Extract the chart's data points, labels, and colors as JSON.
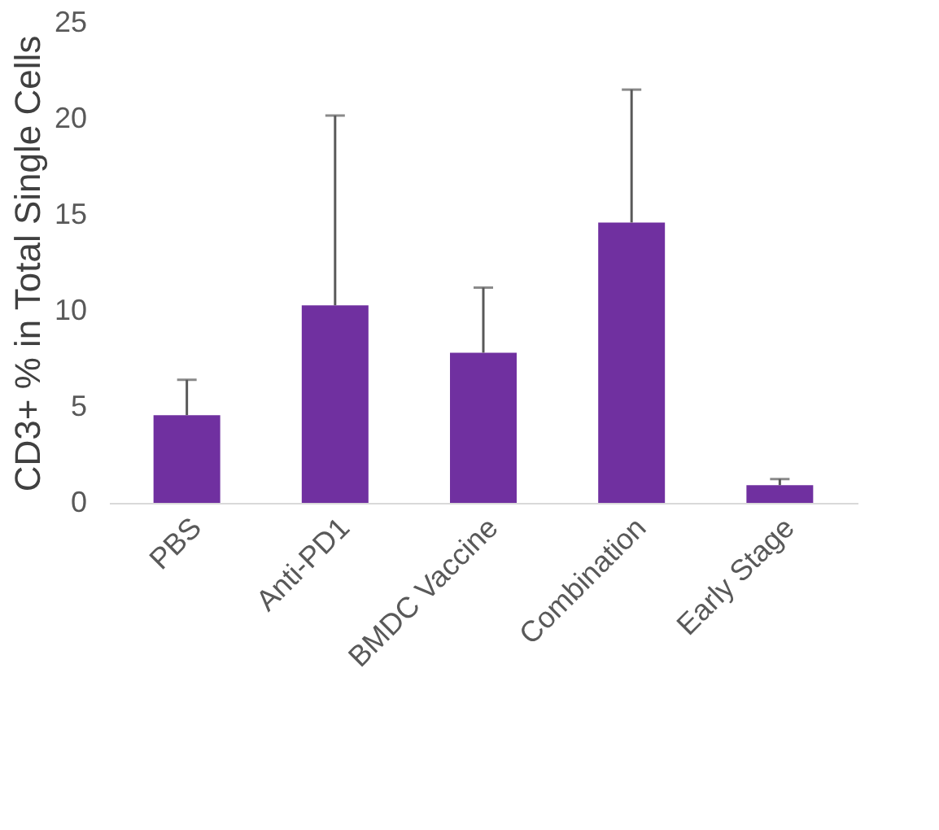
{
  "chart_data": {
    "type": "bar",
    "ylabel": "CD3+ % in Total Single Cells",
    "categories": [
      "PBS",
      "Anti-PD1",
      "BMDC Vaccine",
      "Combination",
      "Early Stage"
    ],
    "values": [
      4.57,
      10.29,
      7.82,
      14.6,
      0.92
    ],
    "errors": [
      [
        4.57,
        6.41
      ],
      [
        10.29,
        20.17
      ],
      [
        7.82,
        11.21
      ],
      [
        14.6,
        21.52
      ],
      [
        0.92,
        1.24
      ]
    ],
    "color": "#7030a0",
    "ylim": [
      0,
      25
    ],
    "yticks": [
      0,
      5,
      10,
      15,
      20,
      25
    ],
    "grid": false
  }
}
